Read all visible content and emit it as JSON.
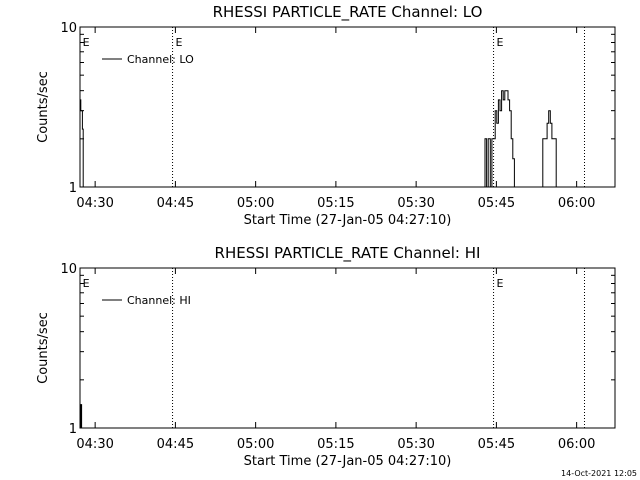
{
  "chart_data": [
    {
      "type": "line",
      "title": "RHESSI PARTICLE_RATE Channel: LO",
      "xlabel": "Start Time (27-Jan-05 04:27:10)",
      "ylabel": "Counts/sec",
      "y_scale": "log",
      "ylim": [
        1,
        10
      ],
      "y_ticks": [
        {
          "value": 1,
          "label": "1"
        },
        {
          "value": 10,
          "label": "10"
        }
      ],
      "xlim_minutes": [
        0,
        100
      ],
      "x_ticks": [
        {
          "minute": 2.83,
          "label": "04:30"
        },
        {
          "minute": 17.83,
          "label": "04:45"
        },
        {
          "minute": 32.83,
          "label": "05:00"
        },
        {
          "minute": 47.83,
          "label": "05:15"
        },
        {
          "minute": 62.83,
          "label": "05:30"
        },
        {
          "minute": 77.83,
          "label": "05:45"
        },
        {
          "minute": 92.83,
          "label": "06:00"
        }
      ],
      "event_lines": [
        {
          "minute": 17.3,
          "label": "E"
        },
        {
          "minute": 77.3,
          "label": "E"
        },
        {
          "minute": 94.3,
          "label": ""
        }
      ],
      "edge_marker": {
        "minute": 0.3,
        "label": "E"
      },
      "legend": {
        "position": "top-left",
        "entries": [
          "Channel: LO"
        ]
      },
      "series": [
        {
          "name": "Channel: LO",
          "points": [
            [
              0.0,
              3.5
            ],
            [
              0.15,
              3.0
            ],
            [
              0.3,
              3.0
            ],
            [
              0.45,
              2.3
            ],
            [
              0.6,
              1.0
            ],
            [
              75.3,
              1.0
            ],
            [
              75.7,
              2.0
            ],
            [
              76.0,
              1.0
            ],
            [
              76.3,
              2.0
            ],
            [
              76.7,
              1.0
            ],
            [
              77.0,
              2.0
            ],
            [
              77.3,
              2.0
            ],
            [
              77.6,
              3.0
            ],
            [
              77.9,
              2.5
            ],
            [
              78.2,
              3.5
            ],
            [
              78.5,
              3.0
            ],
            [
              78.8,
              4.0
            ],
            [
              79.1,
              3.5
            ],
            [
              79.4,
              4.0
            ],
            [
              79.7,
              4.0
            ],
            [
              80.0,
              3.5
            ],
            [
              80.3,
              3.0
            ],
            [
              80.6,
              2.0
            ],
            [
              80.9,
              1.5
            ],
            [
              81.2,
              1.0
            ],
            [
              86.2,
              1.0
            ],
            [
              86.5,
              2.0
            ],
            [
              87.0,
              2.0
            ],
            [
              87.3,
              2.5
            ],
            [
              87.6,
              3.0
            ],
            [
              87.9,
              2.5
            ],
            [
              88.2,
              2.0
            ],
            [
              88.6,
              2.0
            ],
            [
              89.0,
              1.0
            ]
          ]
        }
      ]
    },
    {
      "type": "line",
      "title": "RHESSI PARTICLE_RATE Channel: HI",
      "xlabel": "Start Time (27-Jan-05 04:27:10)",
      "ylabel": "Counts/sec",
      "y_scale": "log",
      "ylim": [
        1,
        10
      ],
      "y_ticks": [
        {
          "value": 1,
          "label": "1"
        },
        {
          "value": 10,
          "label": "10"
        }
      ],
      "xlim_minutes": [
        0,
        100
      ],
      "x_ticks": [
        {
          "minute": 2.83,
          "label": "04:30"
        },
        {
          "minute": 17.83,
          "label": "04:45"
        },
        {
          "minute": 32.83,
          "label": "05:00"
        },
        {
          "minute": 47.83,
          "label": "05:15"
        },
        {
          "minute": 62.83,
          "label": "05:30"
        },
        {
          "minute": 77.83,
          "label": "05:45"
        },
        {
          "minute": 92.83,
          "label": "06:00"
        }
      ],
      "event_lines": [
        {
          "minute": 17.3,
          "label": ""
        },
        {
          "minute": 77.3,
          "label": "E"
        },
        {
          "minute": 94.3,
          "label": ""
        }
      ],
      "edge_marker": {
        "minute": 0.3,
        "label": "E"
      },
      "legend": {
        "position": "top-left",
        "entries": [
          "Channel: HI"
        ]
      },
      "series": [
        {
          "name": "Channel: HI",
          "points": [
            [
              0.0,
              1.0
            ],
            [
              0.15,
              1.4
            ],
            [
              0.3,
              1.0
            ]
          ]
        }
      ]
    }
  ],
  "footer": {
    "timestamp": "14-Oct-2021 12:05"
  }
}
